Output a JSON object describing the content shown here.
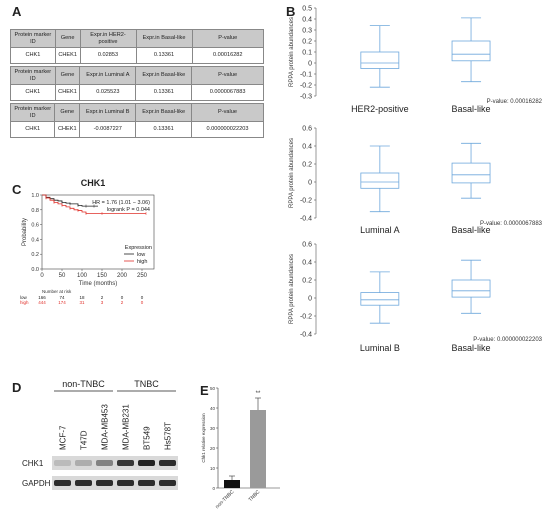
{
  "panel_labels": {
    "a": "A",
    "b": "B",
    "c": "C",
    "d": "D",
    "e": "E"
  },
  "table_a": {
    "blocks": [
      {
        "headers": [
          "Protein marker ID",
          "Gene",
          "Expr.in HER2-positive",
          "Expr.in Basal-like",
          "P-value"
        ],
        "row": [
          "CHK1",
          "CHEK1",
          "0.02853",
          "0.13361",
          "0.00016282"
        ]
      },
      {
        "headers": [
          "Protein marker ID",
          "Gene",
          "Expr.in Luminal A",
          "Expr.in Basal-like",
          "P-value"
        ],
        "row": [
          "CHK1",
          "CHEK1",
          "0.025523",
          "0.13361",
          "0.0000067883"
        ]
      },
      {
        "headers": [
          "Protein marker ID",
          "Gene",
          "Expr.in Luminal B",
          "Expr.in Basal-like",
          "P-value"
        ],
        "row": [
          "CHK1",
          "CHEK1",
          "-0.0087227",
          "0.13361",
          "0.000000022203"
        ]
      }
    ]
  },
  "chart_data": [
    {
      "type": "box",
      "panel": "B1",
      "ylabel": "RPPA protein abundances",
      "ylim": [
        -0.3,
        0.5
      ],
      "yticks": [
        "0.5",
        "0.4",
        "0.3",
        "0.2",
        "0.1",
        "0",
        "-0.1",
        "-0.2",
        "-0.3"
      ],
      "categories": [
        "HER2-positive",
        "Basal-like"
      ],
      "boxes": [
        {
          "min": -0.22,
          "q1": -0.05,
          "median": 0.0,
          "q3": 0.1,
          "max": 0.34
        },
        {
          "min": -0.17,
          "q1": 0.02,
          "median": 0.08,
          "q3": 0.2,
          "max": 0.41
        }
      ],
      "pvalue": "P-value: 0.00016282"
    },
    {
      "type": "box",
      "panel": "B2",
      "ylabel": "RPPA protein abundances",
      "ylim": [
        -0.4,
        0.6
      ],
      "yticks": [
        "0.6",
        "0.4",
        "0.2",
        "0",
        "-0.2",
        "-0.4"
      ],
      "categories": [
        "Luminal A",
        "Basal-like"
      ],
      "boxes": [
        {
          "min": -0.33,
          "q1": -0.07,
          "median": 0.0,
          "q3": 0.1,
          "max": 0.4
        },
        {
          "min": -0.18,
          "q1": -0.01,
          "median": 0.08,
          "q3": 0.21,
          "max": 0.43
        }
      ],
      "pvalue": "P-value: 0.0000067883"
    },
    {
      "type": "box",
      "panel": "B3",
      "ylabel": "RPPA protein abundances",
      "ylim": [
        -0.4,
        0.6
      ],
      "yticks": [
        "0.6",
        "0.4",
        "0.2",
        "0",
        "-0.2",
        "-0.4"
      ],
      "categories": [
        "Luminal B",
        "Basal-like"
      ],
      "boxes": [
        {
          "min": -0.28,
          "q1": -0.08,
          "median": -0.02,
          "q3": 0.06,
          "max": 0.29
        },
        {
          "min": -0.17,
          "q1": 0.01,
          "median": 0.08,
          "q3": 0.2,
          "max": 0.42
        }
      ],
      "pvalue": "P-value: 0.000000022203"
    },
    {
      "type": "line",
      "panel": "C",
      "title": "CHK1",
      "xlabel": "Time (months)",
      "ylabel": "Probability",
      "xlim": [
        0,
        280
      ],
      "ylim": [
        0,
        1.0
      ],
      "xticks": [
        "0",
        "50",
        "100",
        "150",
        "200",
        "250"
      ],
      "yticks": [
        "0.0",
        "0.2",
        "0.4",
        "0.6",
        "0.8",
        "1.0"
      ],
      "annotation_hr": "HR = 1.76 (1.01 − 3.06)",
      "annotation_logrank": "logrank P = 0.044",
      "legend_title": "Expression",
      "series": [
        {
          "name": "low",
          "color": "#222222",
          "x": [
            0,
            10,
            20,
            30,
            40,
            50,
            60,
            70,
            80,
            90,
            100,
            110,
            120,
            130,
            140
          ],
          "y": [
            1.0,
            0.97,
            0.95,
            0.93,
            0.92,
            0.9,
            0.89,
            0.88,
            0.88,
            0.86,
            0.85,
            0.85,
            0.85,
            0.85,
            0.85
          ]
        },
        {
          "name": "high",
          "color": "#e0302a",
          "x": [
            0,
            10,
            20,
            30,
            40,
            50,
            60,
            70,
            80,
            90,
            100,
            110,
            120,
            150,
            200,
            260
          ],
          "y": [
            1.0,
            0.96,
            0.93,
            0.9,
            0.88,
            0.86,
            0.84,
            0.82,
            0.8,
            0.79,
            0.77,
            0.75,
            0.75,
            0.75,
            0.75,
            0.75
          ]
        }
      ],
      "risk_table": {
        "header": "Number at risk",
        "x_positions": [
          0,
          50,
          100,
          150,
          200,
          250
        ],
        "rows": [
          {
            "label": "low",
            "values": [
              "166",
              "74",
              "18",
              "2",
              "0",
              "0"
            ]
          },
          {
            "label": "high",
            "values": [
              "444",
              "174",
              "31",
              "3",
              "2",
              "0"
            ]
          }
        ]
      }
    },
    {
      "type": "bar",
      "panel": "E",
      "categories": [
        "non-TNBC",
        "TNBC"
      ],
      "values": [
        4,
        39
      ],
      "errors": [
        2,
        6
      ],
      "colors": [
        "#111111",
        "#9a9a9a"
      ],
      "ylabel": "Chk1 relative expression",
      "ylim": [
        0,
        50
      ],
      "yticks": [
        "0",
        "10",
        "20",
        "30",
        "40",
        "50"
      ],
      "significance": "**"
    }
  ],
  "western_blot": {
    "groups": [
      "non-TNBC",
      "TNBC"
    ],
    "lanes": [
      "MCF-7",
      "T47D",
      "MDA-MB453",
      "MDA-MB231",
      "BT549",
      "Hs578T"
    ],
    "rows": [
      "CHK1",
      "GAPDH"
    ],
    "chk1_intensity": [
      0.15,
      0.22,
      0.45,
      0.85,
      0.95,
      0.9
    ],
    "gapdh_intensity": [
      0.9,
      0.9,
      0.9,
      0.9,
      0.9,
      0.9
    ]
  }
}
